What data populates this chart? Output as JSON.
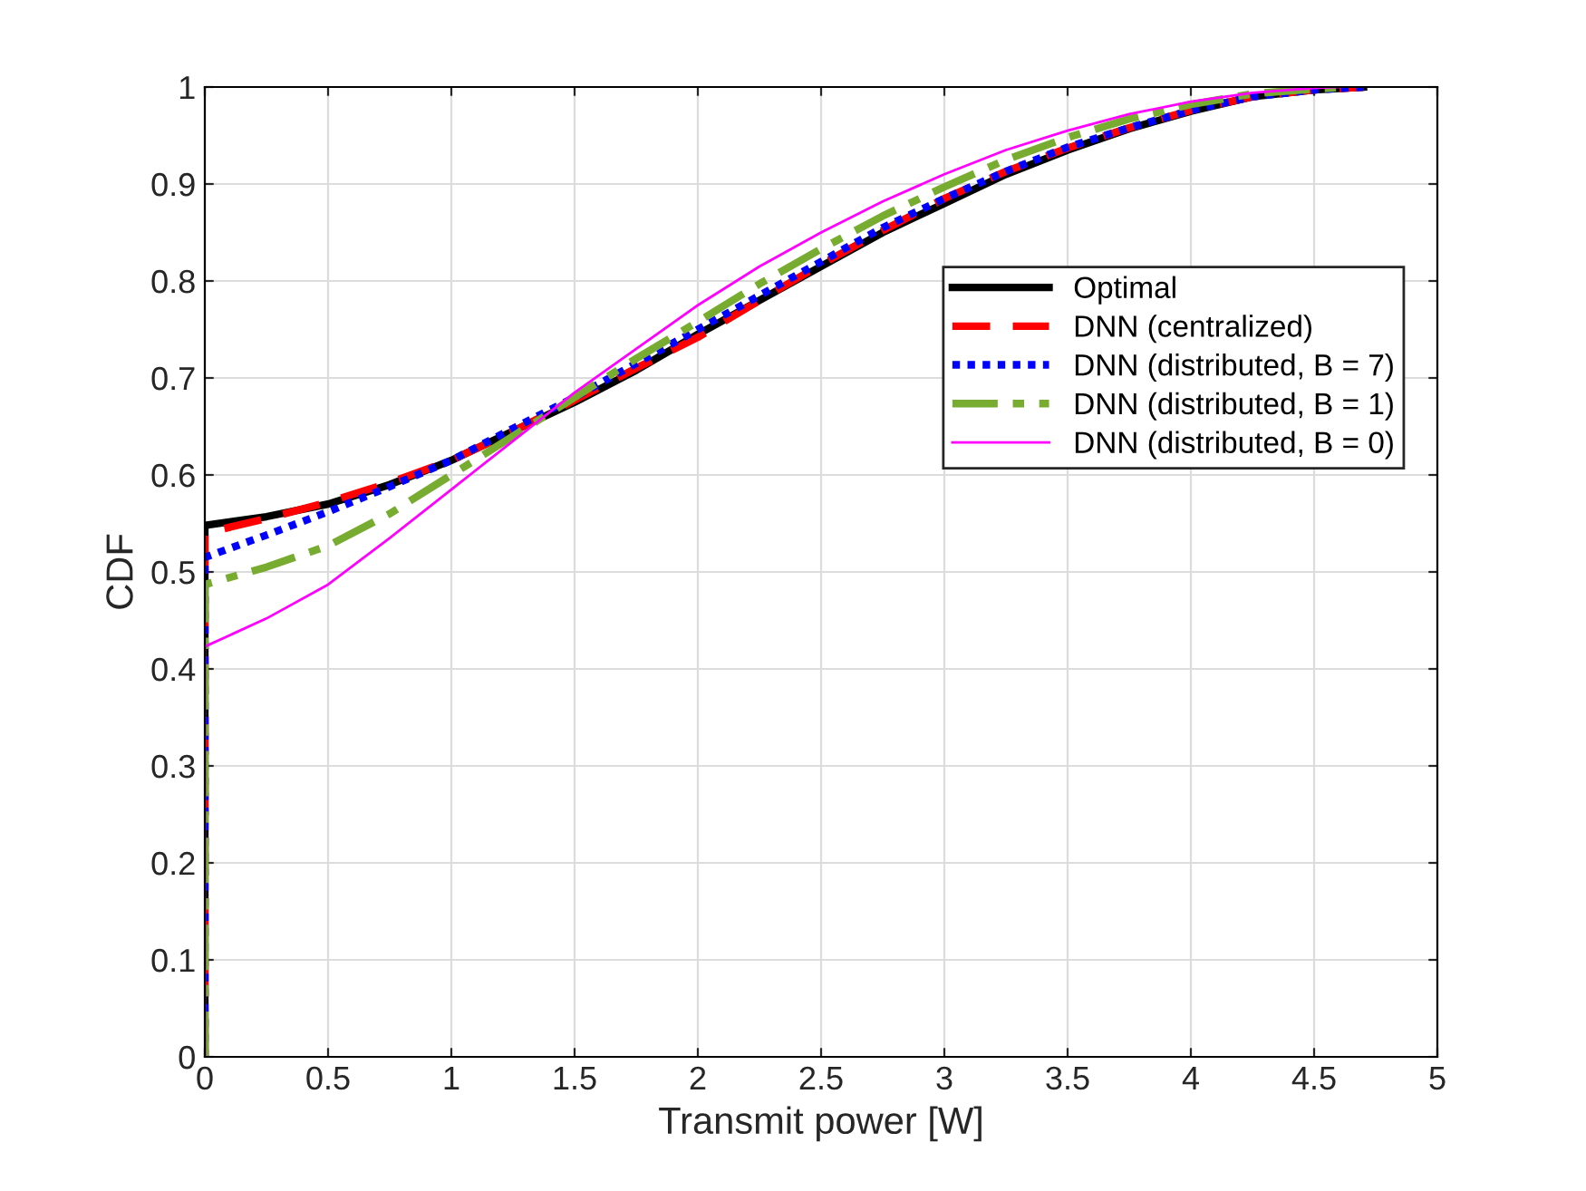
{
  "chart_data": {
    "type": "line",
    "xlabel": "Transmit power [W]",
    "ylabel": "CDF",
    "xlim": [
      0,
      5
    ],
    "ylim": [
      0,
      1
    ],
    "xticks": [
      0,
      0.5,
      1,
      1.5,
      2,
      2.5,
      3,
      3.5,
      4,
      4.5,
      5
    ],
    "yticks": [
      0,
      0.1,
      0.2,
      0.3,
      0.4,
      0.5,
      0.6,
      0.7,
      0.8,
      0.9,
      1
    ],
    "grid": true,
    "legend": "top right",
    "marker": "none",
    "series": [
      {
        "name": "Optimal",
        "color": "#000000",
        "line_style": "solid",
        "x": [
          0,
          0,
          0.25,
          0.5,
          0.75,
          1,
          1.25,
          1.5,
          1.75,
          2,
          2.25,
          2.5,
          2.75,
          3,
          3.25,
          3.5,
          3.75,
          4,
          4.25,
          4.5,
          4.7
        ],
        "values": [
          0,
          0.548,
          0.557,
          0.57,
          0.59,
          0.615,
          0.645,
          0.675,
          0.708,
          0.745,
          0.78,
          0.815,
          0.85,
          0.88,
          0.91,
          0.935,
          0.957,
          0.975,
          0.99,
          0.997,
          1
        ]
      },
      {
        "name": "DNN (centralized)",
        "color": "#ff0000",
        "line_style": "dashed",
        "x": [
          0,
          0,
          0.25,
          0.5,
          0.75,
          1,
          1.25,
          1.5,
          1.75,
          2,
          2.25,
          2.5,
          2.75,
          3,
          3.25,
          3.5,
          3.75,
          4,
          4.25,
          4.5,
          4.7
        ],
        "values": [
          0,
          0.54,
          0.555,
          0.572,
          0.592,
          0.615,
          0.645,
          0.677,
          0.71,
          0.742,
          0.78,
          0.817,
          0.852,
          0.885,
          0.913,
          0.937,
          0.958,
          0.976,
          0.99,
          0.997,
          1
        ]
      },
      {
        "name": "DNN (distributed, B = 7)",
        "color": "#0000ff",
        "line_style": "dotted",
        "x": [
          0,
          0,
          0.25,
          0.5,
          0.75,
          1,
          1.25,
          1.5,
          1.75,
          2,
          2.25,
          2.5,
          2.75,
          3,
          3.25,
          3.5,
          3.75,
          4,
          4.25,
          4.5,
          4.7
        ],
        "values": [
          0,
          0.515,
          0.538,
          0.562,
          0.588,
          0.615,
          0.648,
          0.68,
          0.715,
          0.75,
          0.785,
          0.82,
          0.855,
          0.885,
          0.913,
          0.938,
          0.958,
          0.976,
          0.99,
          0.997,
          1
        ]
      },
      {
        "name": "DNN (distributed, B = 1)",
        "color": "#77ac30",
        "line_style": "dashdot",
        "x": [
          0,
          0,
          0.25,
          0.5,
          0.75,
          1,
          1.25,
          1.5,
          1.75,
          2,
          2.25,
          2.5,
          2.75,
          3,
          3.25,
          3.5,
          3.75,
          4,
          4.25,
          4.5,
          4.65
        ],
        "values": [
          0,
          0.487,
          0.505,
          0.527,
          0.56,
          0.6,
          0.64,
          0.68,
          0.72,
          0.758,
          0.797,
          0.833,
          0.867,
          0.897,
          0.925,
          0.948,
          0.967,
          0.982,
          0.993,
          0.998,
          1
        ]
      },
      {
        "name": "DNN (distributed, B = 0)",
        "color": "#ff00ff",
        "line_style": "solid",
        "x": [
          0,
          0,
          0.25,
          0.5,
          0.75,
          1,
          1.25,
          1.5,
          1.75,
          2,
          2.25,
          2.5,
          2.75,
          3,
          3.25,
          3.5,
          3.75,
          4,
          4.25,
          4.5,
          4.6
        ],
        "values": [
          0,
          0.423,
          0.452,
          0.487,
          0.535,
          0.585,
          0.635,
          0.685,
          0.73,
          0.775,
          0.815,
          0.85,
          0.882,
          0.91,
          0.935,
          0.955,
          0.972,
          0.985,
          0.994,
          0.999,
          1
        ]
      }
    ]
  }
}
